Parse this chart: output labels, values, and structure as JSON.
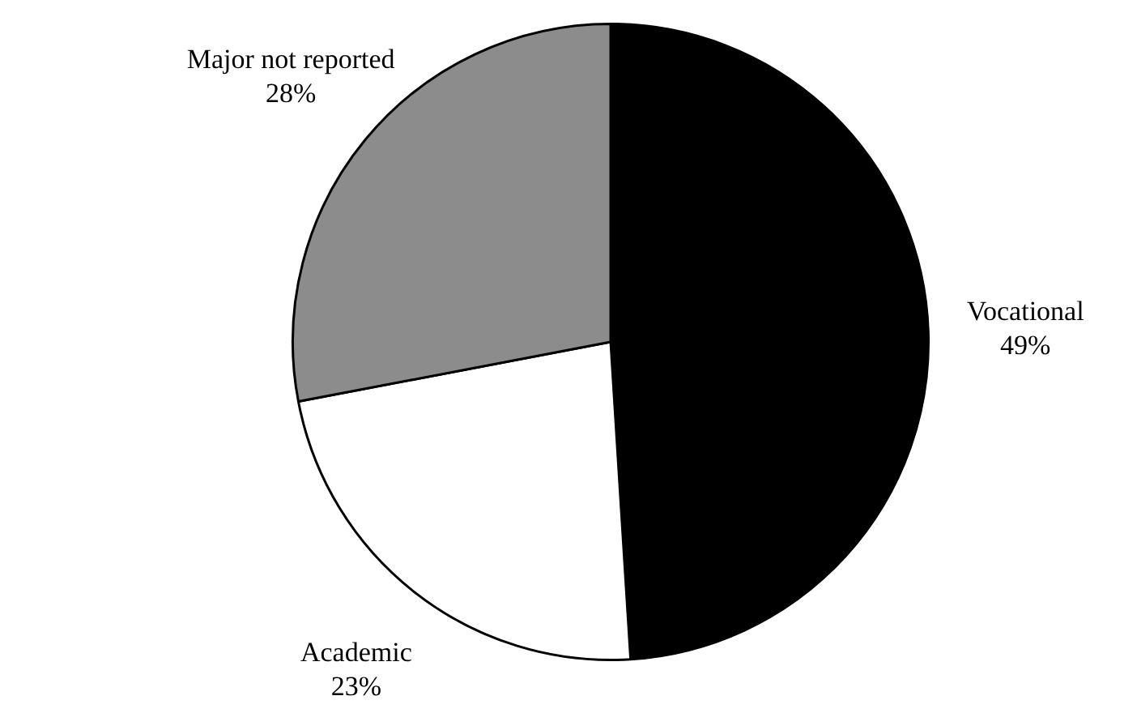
{
  "chart_data": {
    "type": "pie",
    "categories": [
      "Vocational",
      "Academic",
      "Major not reported"
    ],
    "values": [
      49,
      23,
      28
    ],
    "colors": [
      "#000000",
      "#ffffff",
      "#8c8c8c"
    ],
    "value_labels": [
      "49%",
      "23%",
      "28%"
    ],
    "legend": false
  }
}
